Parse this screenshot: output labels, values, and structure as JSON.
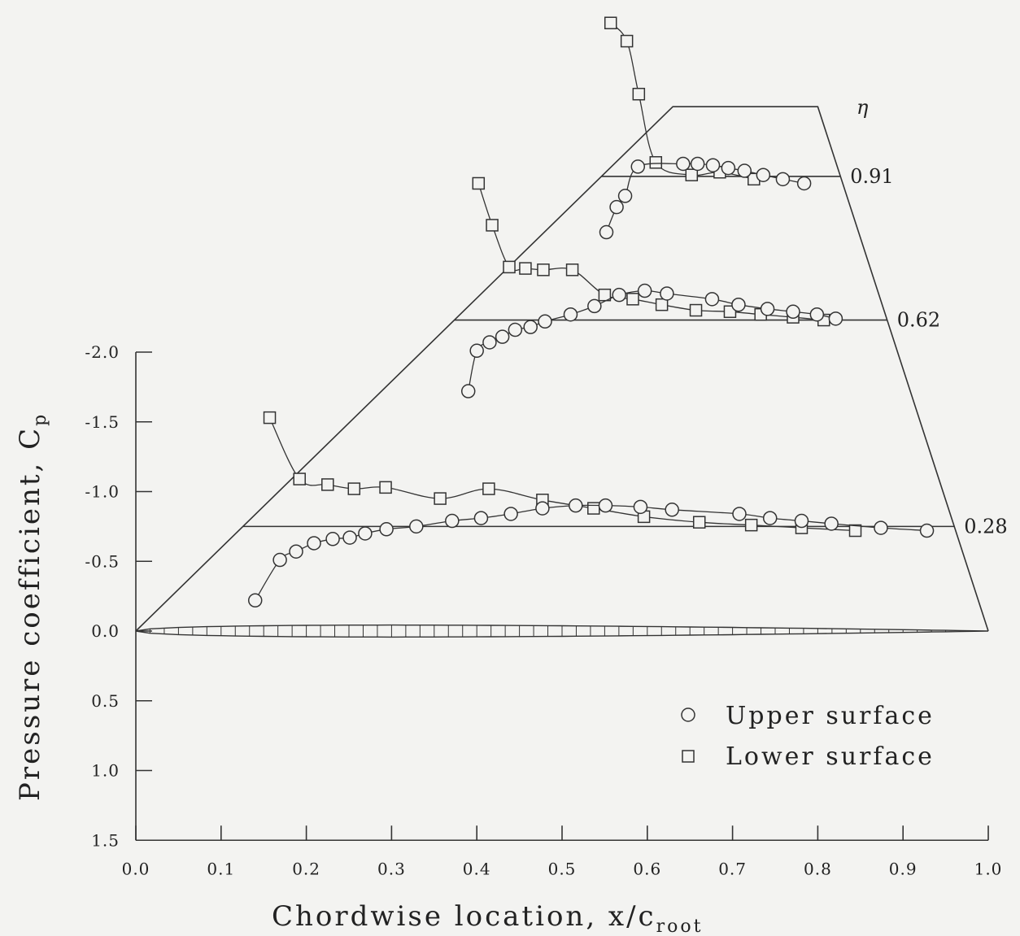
{
  "chart_data": {
    "type": "scatter",
    "title": "",
    "xlabel": "Chordwise location, x/c",
    "xlabel_subscript": "root",
    "ylabel": "Pressure coefficient, C",
    "ylabel_subscript": "p",
    "xlim": [
      0.0,
      1.0
    ],
    "ylim": [
      -2.0,
      1.5
    ],
    "y_axis_inverted": true,
    "x_ticks": [
      "0.0",
      "0.1",
      "0.2",
      "0.3",
      "0.4",
      "0.5",
      "0.6",
      "0.7",
      "0.8",
      "0.9",
      "1.0"
    ],
    "y_ticks": [
      "-2.0",
      "-1.5",
      "-1.0",
      "-0.5",
      "0.0",
      "0.5",
      "1.0",
      "1.5"
    ],
    "grid": false,
    "legend_position": "lower-right",
    "legend": [
      {
        "label": "Upper surface",
        "marker": "circle"
      },
      {
        "label": "Lower surface",
        "marker": "square"
      }
    ],
    "eta_symbol": "η",
    "stations": [
      {
        "eta": "0.28",
        "baseline_cp": -0.75,
        "upper": [
          [
            0.14,
            -0.22
          ],
          [
            0.169,
            -0.51
          ],
          [
            0.188,
            -0.57
          ],
          [
            0.209,
            -0.63
          ],
          [
            0.231,
            -0.66
          ],
          [
            0.251,
            -0.67
          ],
          [
            0.269,
            -0.7
          ],
          [
            0.294,
            -0.73
          ],
          [
            0.329,
            -0.75
          ],
          [
            0.371,
            -0.79
          ],
          [
            0.405,
            -0.81
          ],
          [
            0.44,
            -0.84
          ],
          [
            0.477,
            -0.88
          ],
          [
            0.516,
            -0.9
          ],
          [
            0.551,
            -0.9
          ],
          [
            0.592,
            -0.89
          ],
          [
            0.629,
            -0.87
          ],
          [
            0.708,
            -0.84
          ],
          [
            0.744,
            -0.81
          ],
          [
            0.781,
            -0.79
          ],
          [
            0.816,
            -0.77
          ],
          [
            0.874,
            -0.74
          ],
          [
            0.928,
            -0.72
          ]
        ],
        "lower": [
          [
            0.157,
            -1.53
          ],
          [
            0.192,
            -1.09
          ],
          [
            0.225,
            -1.05
          ],
          [
            0.256,
            -1.02
          ],
          [
            0.293,
            -1.03
          ],
          [
            0.357,
            -0.95
          ],
          [
            0.414,
            -1.02
          ],
          [
            0.477,
            -0.94
          ],
          [
            0.537,
            -0.88
          ],
          [
            0.596,
            -0.82
          ],
          [
            0.661,
            -0.78
          ],
          [
            0.722,
            -0.76
          ],
          [
            0.781,
            -0.74
          ],
          [
            0.844,
            -0.72
          ]
        ]
      },
      {
        "eta": "0.62",
        "baseline_cp": -2.23,
        "upper": [
          [
            0.39,
            -1.72
          ],
          [
            0.4,
            -2.01
          ],
          [
            0.415,
            -2.07
          ],
          [
            0.43,
            -2.11
          ],
          [
            0.445,
            -2.16
          ],
          [
            0.463,
            -2.18
          ],
          [
            0.48,
            -2.22
          ],
          [
            0.51,
            -2.27
          ],
          [
            0.538,
            -2.33
          ],
          [
            0.567,
            -2.41
          ],
          [
            0.597,
            -2.44
          ],
          [
            0.623,
            -2.42
          ],
          [
            0.676,
            -2.38
          ],
          [
            0.707,
            -2.34
          ],
          [
            0.741,
            -2.31
          ],
          [
            0.771,
            -2.29
          ],
          [
            0.799,
            -2.27
          ],
          [
            0.821,
            -2.24
          ]
        ],
        "lower": [
          [
            0.402,
            -3.21
          ],
          [
            0.418,
            -2.91
          ],
          [
            0.438,
            -2.61
          ],
          [
            0.457,
            -2.6
          ],
          [
            0.478,
            -2.59
          ],
          [
            0.512,
            -2.59
          ],
          [
            0.55,
            -2.41
          ],
          [
            0.583,
            -2.38
          ],
          [
            0.617,
            -2.34
          ],
          [
            0.657,
            -2.3
          ],
          [
            0.697,
            -2.29
          ],
          [
            0.733,
            -2.27
          ],
          [
            0.771,
            -2.25
          ],
          [
            0.807,
            -2.23
          ]
        ]
      },
      {
        "eta": "0.91",
        "baseline_cp": -3.26,
        "upper": [
          [
            0.552,
            -2.86
          ],
          [
            0.564,
            -3.04
          ],
          [
            0.574,
            -3.12
          ],
          [
            0.589,
            -3.33
          ],
          [
            0.642,
            -3.35
          ],
          [
            0.659,
            -3.35
          ],
          [
            0.677,
            -3.34
          ],
          [
            0.695,
            -3.32
          ],
          [
            0.714,
            -3.3
          ],
          [
            0.736,
            -3.27
          ],
          [
            0.759,
            -3.24
          ],
          [
            0.784,
            -3.21
          ]
        ],
        "lower": [
          [
            0.557,
            -4.36
          ],
          [
            0.576,
            -4.23
          ],
          [
            0.59,
            -3.85
          ],
          [
            0.61,
            -3.36
          ],
          [
            0.652,
            -3.27
          ],
          [
            0.685,
            -3.29
          ],
          [
            0.725,
            -3.24
          ]
        ]
      }
    ]
  }
}
